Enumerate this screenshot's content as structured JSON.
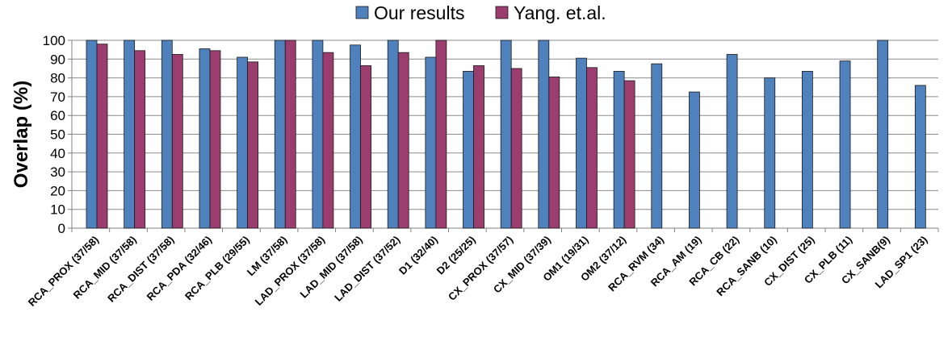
{
  "chart_data": {
    "type": "bar",
    "title": "",
    "xlabel": "",
    "ylabel": "Overlap (%)",
    "ylim": [
      0,
      100
    ],
    "yticks": [
      0,
      10,
      20,
      30,
      40,
      50,
      60,
      70,
      80,
      90,
      100
    ],
    "grid": true,
    "legend_position": "top",
    "categories": [
      "RCA_PROX (37/58)",
      "RCA_MID (37/58)",
      "RCA_DIST (37/58)",
      "RCA_PDA (32/46)",
      "RCA_PLB (29/55)",
      "LM (37/58)",
      "LAD_PROX (37/58)",
      "LAD_MID (37/58)",
      "LAD_DIST (37/52)",
      "D1 (32/40)",
      "D2 (25/25)",
      "CX_PROX (37/57)",
      "CX_MID (37/39)",
      "OM1 (19/31)",
      "OM2 (37/12)",
      "RCA_RVM (34)",
      "RCA_AM (19)",
      "RCA_CB (22)",
      "RCA_SANB (10)",
      "CX_DIST (25)",
      "CX_PLB (11)",
      "CX_SANB(9)",
      "LAD_SP1 (23)"
    ],
    "series": [
      {
        "name": "Our results",
        "color": "#4F81BD",
        "values": [
          100,
          100,
          100,
          95.5,
          91,
          100,
          100,
          97.5,
          100,
          91,
          83.5,
          100,
          100,
          90.5,
          83.5,
          87.5,
          72.5,
          92.5,
          80,
          83.5,
          89,
          100,
          76
        ]
      },
      {
        "name": "Yang. et.al.",
        "color": "#9B3D6E",
        "values": [
          98,
          94.5,
          92.5,
          94.5,
          88.5,
          100,
          93.5,
          86.5,
          93.5,
          100,
          86.5,
          85,
          80.5,
          85.5,
          78.5,
          null,
          null,
          null,
          null,
          null,
          null,
          null,
          null
        ]
      }
    ]
  }
}
